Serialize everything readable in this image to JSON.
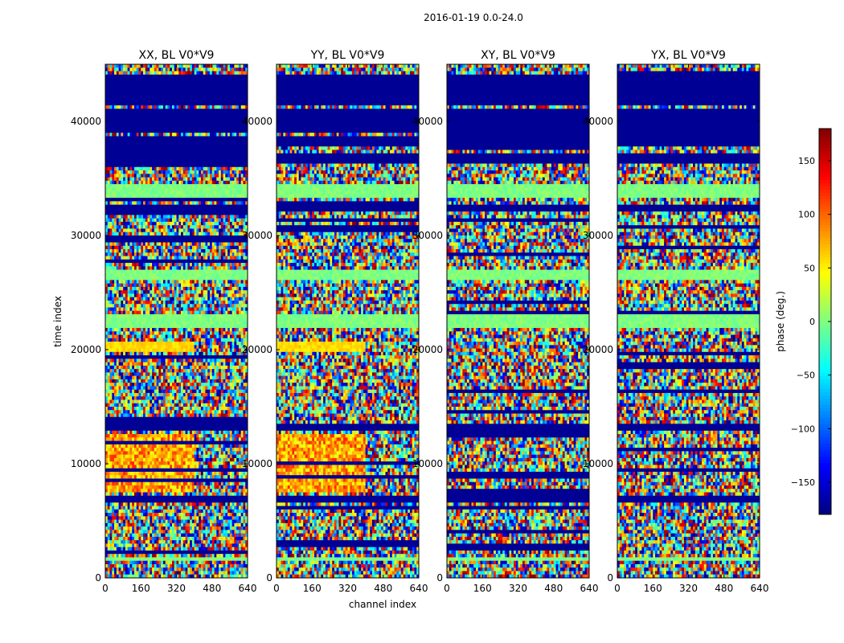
{
  "chart_data": {
    "type": "heatmap",
    "suptitle": "2016-01-19 0.0-24.0",
    "xlabel": "channel index",
    "ylabel": "time index",
    "xlim": [
      0,
      640
    ],
    "ylim": [
      0,
      45000
    ],
    "x_ticks": [
      "0",
      "160",
      "320",
      "480",
      "640"
    ],
    "y_ticks": [
      "0",
      "10000",
      "20000",
      "30000",
      "40000"
    ],
    "x_tick_values": [
      0,
      160,
      320,
      480,
      640
    ],
    "y_tick_values": [
      0,
      10000,
      20000,
      30000,
      40000
    ],
    "panels": [
      {
        "title": "XX, BL V0*V9",
        "pol": "XX",
        "strong_edge": 400,
        "warm": 1
      },
      {
        "title": "YY, BL V0*V9",
        "pol": "YY",
        "strong_edge": 400,
        "warm": 1
      },
      {
        "title": "XY, BL V0*V9",
        "pol": "XY",
        "strong_edge": 0,
        "warm": 0
      },
      {
        "title": "YX, BL V0*V9",
        "pol": "YX",
        "strong_edge": 0,
        "warm": 0
      }
    ],
    "colorbar": {
      "label": "phase (deg.)",
      "range": [
        -180,
        180
      ],
      "ticks": [
        "150",
        "100",
        "50",
        "0",
        "−50",
        "−100",
        "−150"
      ],
      "tick_values": [
        150,
        100,
        50,
        0,
        -50,
        -100,
        -150
      ],
      "colormap": "jet"
    },
    "flagged_time_ranges": [
      [
        39000,
        41000
      ],
      [
        41500,
        44000
      ],
      [
        36300,
        37200
      ],
      [
        37700,
        38800
      ],
      [
        32000,
        32800
      ],
      [
        12800,
        13500
      ],
      [
        6500,
        7200
      ]
    ],
    "band_time_ranges": [
      [
        33200,
        34500
      ],
      [
        22000,
        23000
      ],
      [
        1500,
        1800
      ],
      [
        26000,
        27000
      ]
    ]
  }
}
